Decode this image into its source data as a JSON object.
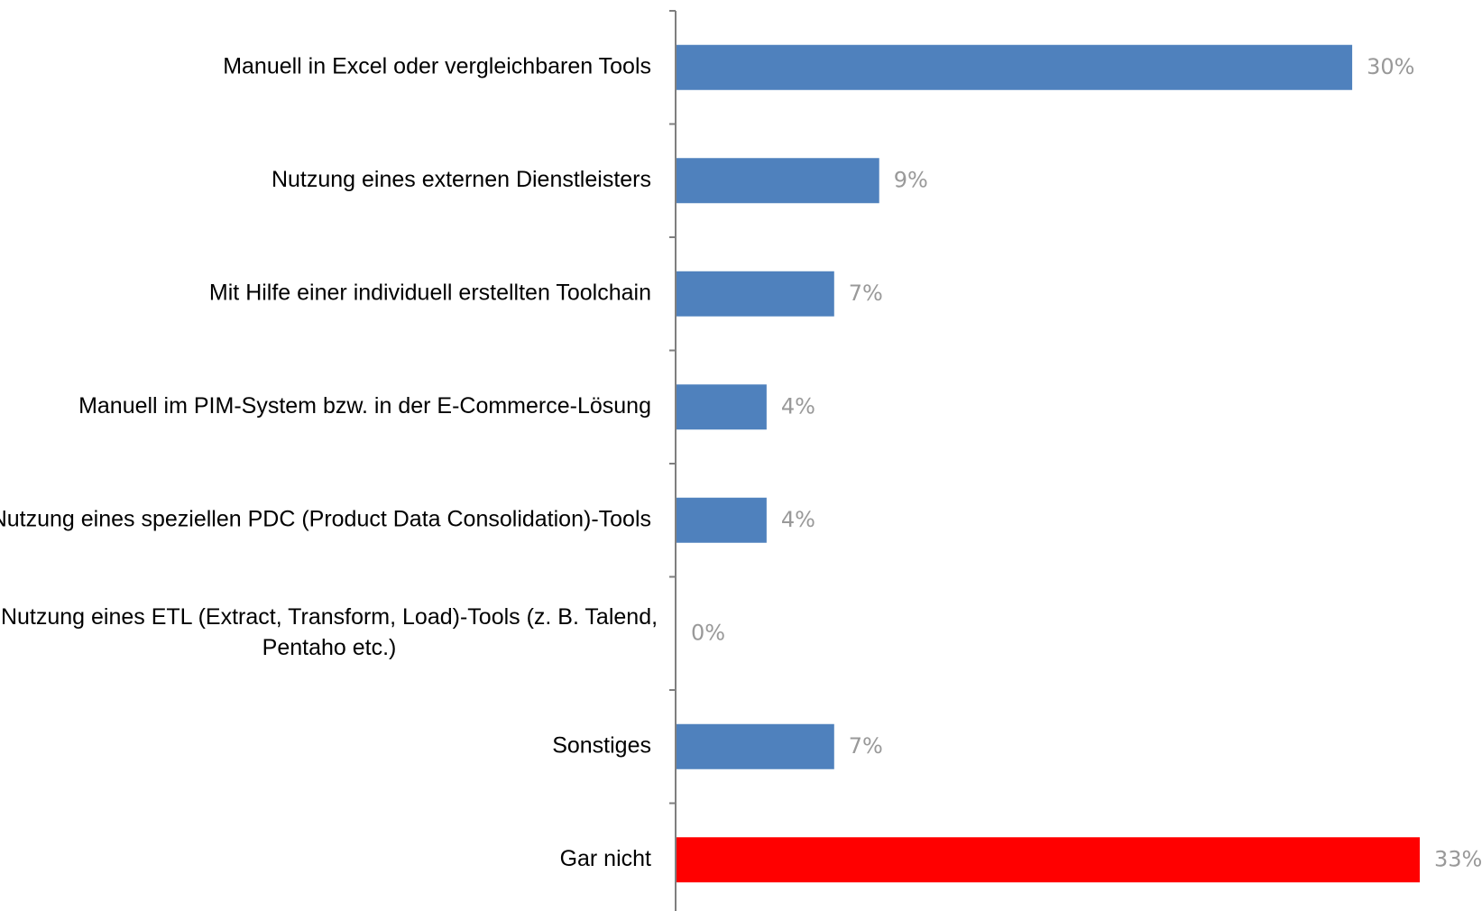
{
  "chart_data": {
    "type": "bar",
    "orientation": "horizontal",
    "categories": [
      [
        "Manuell in Excel oder vergleichbaren Tools"
      ],
      [
        "Nutzung eines externen Dienstleisters"
      ],
      [
        "Mit Hilfe einer individuell erstellten Toolchain"
      ],
      [
        "Manuell im PIM-System bzw. in der E-Commerce-Lösung"
      ],
      [
        "Nutzung eines speziellen PDC (Product Data Consolidation)-Tools"
      ],
      [
        "Nutzung eines ETL (Extract, Transform, Load)-Tools (z. B. Talend,",
        "Pentaho etc.)"
      ],
      [
        "Sonstiges"
      ],
      [
        "Gar nicht"
      ]
    ],
    "values": [
      30,
      9,
      7,
      4,
      4,
      0,
      7,
      33
    ],
    "value_labels": [
      "30%",
      "9%",
      "7%",
      "4%",
      "4%",
      "0%",
      "7%",
      "33%"
    ],
    "bar_colors": [
      "#4F81BD",
      "#4F81BD",
      "#4F81BD",
      "#4F81BD",
      "#4F81BD",
      "#4F81BD",
      "#4F81BD",
      "#FF0000"
    ],
    "value_unit": "%",
    "xlim": [
      0,
      33
    ],
    "title": "",
    "xlabel": "",
    "ylabel": "",
    "grid": false,
    "legend": "none"
  }
}
